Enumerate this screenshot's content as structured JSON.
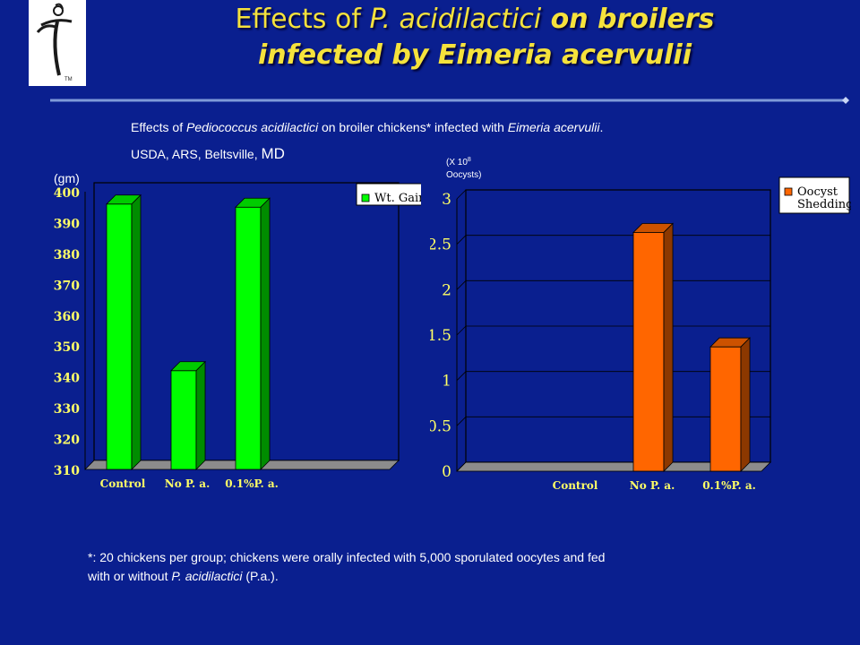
{
  "title": {
    "part1": "Effects of ",
    "part2": "P. acidilactici",
    "part3": " on broilers",
    "line2": "infected by Eimeria acervulii"
  },
  "subtitle": {
    "line1_a": "Effects of ",
    "line1_b": "Pediococcus acidilactici",
    "line1_c": " on broiler chickens* infected with ",
    "line1_d": "Eimeria acervulii",
    "line1_e": ".",
    "line2_a": "USDA, ARS, Beltsville, ",
    "line2_b": "MD"
  },
  "colors": {
    "background": "#0a1f8f",
    "title": "#f5e23c",
    "weight_bar": "#00ff00",
    "oocyst_bar": "#ff6600"
  },
  "chart_data": [
    {
      "type": "bar",
      "categories": [
        "Control",
        "No P. a.",
        "0.1%P. a."
      ],
      "series": [
        {
          "name": "Wt. Gain",
          "values": [
            396,
            342,
            395
          ]
        }
      ],
      "ylabel": "(gm)",
      "ylim": [
        310,
        400
      ],
      "yticks": [
        "310",
        "320",
        "330",
        "340",
        "350",
        "360",
        "370",
        "380",
        "390",
        "400"
      ],
      "ytick_values": [
        310,
        320,
        330,
        340,
        350,
        360,
        370,
        380,
        390,
        400
      ],
      "grid": false,
      "legend": "top-right"
    },
    {
      "type": "bar",
      "categories": [
        "Control",
        "No P. a.",
        "0.1%P. a."
      ],
      "series": [
        {
          "name": "Oocyst Shedding",
          "values": [
            0,
            2.63,
            1.37
          ]
        }
      ],
      "ylabel": "(X 10",
      "ylabel_sup": "8",
      "ylabel2": "Oocysts)",
      "ylim": [
        0,
        3
      ],
      "yticks": [
        "0",
        "0.5",
        "1",
        "1.5",
        "2",
        "2.5",
        "3"
      ],
      "ytick_values": [
        0,
        0.5,
        1,
        1.5,
        2,
        2.5,
        3
      ],
      "grid": true,
      "legend": "top-right"
    }
  ],
  "footnote": {
    "line1": "*: 20 chickens per group; chickens were orally infected with 5,000 sporulated oocytes and fed",
    "line2_a": "with or without ",
    "line2_b": "P. acidilactici",
    "line2_c": " (P.a.)."
  }
}
